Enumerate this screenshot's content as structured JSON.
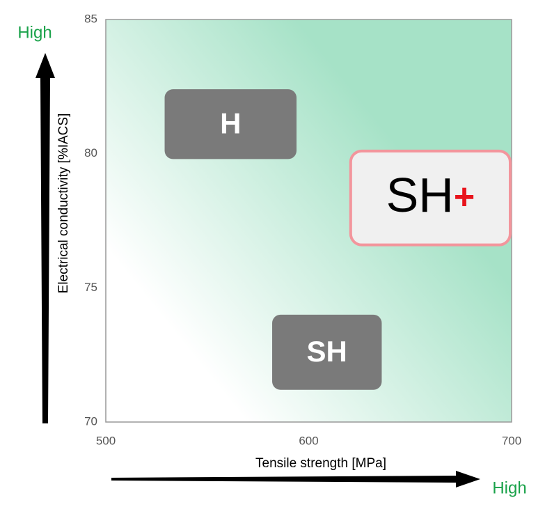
{
  "chart_data": {
    "type": "region",
    "xlabel": "Tensile strength [MPa]",
    "ylabel": "Electrical conductivity [%IACS]",
    "x_high": "High",
    "y_high": "High",
    "xlim": [
      500,
      700
    ],
    "xticks": [
      500,
      600,
      700
    ],
    "ylim": [
      70,
      85
    ],
    "yticks": [
      70,
      75,
      80,
      85
    ],
    "regions": [
      {
        "name": "H",
        "x": [
          529,
          594
        ],
        "y": [
          79.8,
          82.4
        ],
        "color": "#7a7a7a"
      },
      {
        "name": "SH",
        "x": [
          582,
          636
        ],
        "y": [
          71.2,
          74.0
        ],
        "color": "#7a7a7a"
      },
      {
        "name": "SH",
        "suffix": "+",
        "suffix_color": "#e8141c",
        "x": [
          620,
          700
        ],
        "y": [
          76.6,
          80.1
        ],
        "color": "#f0f0f0",
        "border": "#f3959c"
      }
    ]
  }
}
